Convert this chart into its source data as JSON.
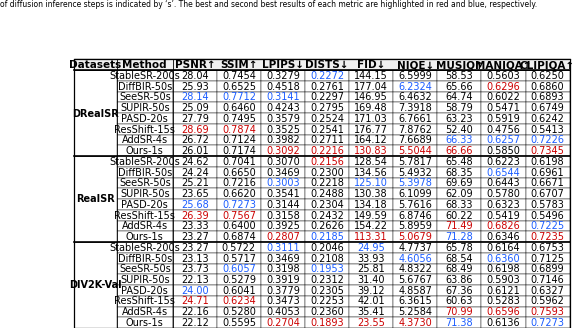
{
  "title_text": "of diffusion inference steps is indicated by ‘s’. The best and second best results of each metric are highlighted in red and blue, respectively.",
  "headers": [
    "Datasets",
    "Method",
    "PSNR↑",
    "SSIM↑",
    "LPIPS↓",
    "DISTS↓",
    "FID↓",
    "NIQE↓",
    "MUSIQ↑",
    "MANIQA↑",
    "CLIPIQA↑"
  ],
  "sections": [
    {
      "dataset": "DRealSR",
      "rows": [
        [
          "StableSR-200s",
          "28.04",
          "0.7454",
          "0.3279",
          "0.2272",
          "144.15",
          "6.5999",
          "58.53",
          "0.5603",
          "0.6250"
        ],
        [
          "DiffBIR-50s",
          "25.93",
          "0.6525",
          "0.4518",
          "0.2761",
          "177.04",
          "6.2324",
          "65.66",
          "0.6296",
          "0.6860"
        ],
        [
          "SeeSR-50s",
          "28.14",
          "0.7712",
          "0.3141",
          "0.2297",
          "146.95",
          "6.4632",
          "64.74",
          "0.6022",
          "0.6893"
        ],
        [
          "SUPIR-50s",
          "25.09",
          "0.6460",
          "0.4243",
          "0.2795",
          "169.48",
          "7.3918",
          "58.79",
          "0.5471",
          "0.6749"
        ],
        [
          "PASD-20s",
          "27.79",
          "0.7495",
          "0.3579",
          "0.2524",
          "171.03",
          "6.7661",
          "63.23",
          "0.5919",
          "0.6242"
        ],
        [
          "ResShift-15s",
          "28.69",
          "0.7874",
          "0.3525",
          "0.2541",
          "176.77",
          "7.8762",
          "52.40",
          "0.4756",
          "0.5413"
        ],
        [
          "AddSR-4s",
          "26.72",
          "0.7124",
          "0.3982",
          "0.2711",
          "164.12",
          "7.6689",
          "66.33",
          "0.6257",
          "0.7226"
        ],
        [
          "Ours-1s",
          "26.01",
          "0.7174",
          "0.3092",
          "0.2216",
          "130.83",
          "5.5044",
          "66.66",
          "0.5850",
          "0.7345"
        ]
      ],
      "colors": [
        [
          "black",
          "black",
          "black",
          "blue",
          "#1a6aff",
          "black",
          "black",
          "black",
          "black"
        ],
        [
          "black",
          "black",
          "black",
          "black",
          "black",
          "blue",
          "black",
          "red",
          "black"
        ],
        [
          "blue",
          "blue",
          "blue",
          "black",
          "black",
          "black",
          "black",
          "black",
          "black"
        ],
        [
          "black",
          "black",
          "black",
          "black",
          "black",
          "black",
          "black",
          "black",
          "black"
        ],
        [
          "black",
          "black",
          "black",
          "black",
          "black",
          "black",
          "black",
          "black",
          "black"
        ],
        [
          "red",
          "red",
          "black",
          "black",
          "black",
          "black",
          "black",
          "black",
          "black"
        ],
        [
          "black",
          "black",
          "black",
          "black",
          "black",
          "black",
          "blue",
          "blue",
          "blue"
        ],
        [
          "black",
          "black",
          "red",
          "red",
          "red",
          "red",
          "red",
          "black",
          "red"
        ]
      ]
    },
    {
      "dataset": "RealSR",
      "rows": [
        [
          "StableSR-200s",
          "24.62",
          "0.7041",
          "0.3070",
          "0.2156",
          "128.54",
          "5.7817",
          "65.48",
          "0.6223",
          "0.6198"
        ],
        [
          "DiffBIR-50s",
          "24.24",
          "0.6650",
          "0.3469",
          "0.2300",
          "134.56",
          "5.4932",
          "68.35",
          "0.6544",
          "0.6961"
        ],
        [
          "SeeSR-50s",
          "25.21",
          "0.7216",
          "0.3003",
          "0.2218",
          "125.10",
          "5.3978",
          "69.69",
          "0.6443",
          "0.6671"
        ],
        [
          "SUPIR-50s",
          "23.65",
          "0.6620",
          "0.3541",
          "0.2488",
          "130.38",
          "6.1099",
          "62.09",
          "0.5780",
          "0.6707"
        ],
        [
          "PASD-20s",
          "25.68",
          "0.7273",
          "0.3144",
          "0.2304",
          "134.18",
          "5.7616",
          "68.33",
          "0.6323",
          "0.5783"
        ],
        [
          "ResShift-15s",
          "26.39",
          "0.7567",
          "0.3158",
          "0.2432",
          "149.59",
          "6.8746",
          "60.22",
          "0.5419",
          "0.5496"
        ],
        [
          "AddSR-4s",
          "23.33",
          "0.6400",
          "0.3925",
          "0.2626",
          "154.22",
          "5.8959",
          "71.49",
          "0.6826",
          "0.7225"
        ],
        [
          "Ours-1s",
          "23.27",
          "0.6874",
          "0.2807",
          "0.2185",
          "113.31",
          "5.0679",
          "71.28",
          "0.6346",
          "0.7235"
        ]
      ],
      "colors": [
        [
          "black",
          "black",
          "black",
          "red",
          "black",
          "black",
          "black",
          "black",
          "black"
        ],
        [
          "black",
          "black",
          "black",
          "black",
          "black",
          "black",
          "black",
          "blue",
          "black"
        ],
        [
          "black",
          "black",
          "blue",
          "black",
          "blue",
          "blue",
          "black",
          "black",
          "black"
        ],
        [
          "black",
          "black",
          "black",
          "black",
          "black",
          "black",
          "black",
          "black",
          "black"
        ],
        [
          "blue",
          "blue",
          "black",
          "black",
          "black",
          "black",
          "black",
          "black",
          "black"
        ],
        [
          "red",
          "red",
          "black",
          "black",
          "black",
          "black",
          "black",
          "black",
          "black"
        ],
        [
          "black",
          "black",
          "black",
          "black",
          "black",
          "black",
          "red",
          "red",
          "blue"
        ],
        [
          "black",
          "black",
          "red",
          "blue",
          "red",
          "red",
          "blue",
          "black",
          "red"
        ]
      ]
    },
    {
      "dataset": "DIV2K-Val",
      "rows": [
        [
          "StableSR-200s",
          "23.27",
          "0.5722",
          "0.3111",
          "0.2046",
          "24.95",
          "4.7737",
          "65.78",
          "0.6164",
          "0.6753"
        ],
        [
          "DiffBIR-50s",
          "23.13",
          "0.5717",
          "0.3469",
          "0.2108",
          "33.93",
          "4.6056",
          "68.54",
          "0.6360",
          "0.7125"
        ],
        [
          "SeeSR-50s",
          "23.73",
          "0.6057",
          "0.3198",
          "0.1953",
          "25.81",
          "4.8322",
          "68.49",
          "0.6198",
          "0.6899"
        ],
        [
          "SUPIR-50s",
          "22.13",
          "0.5279",
          "0.3919",
          "0.2312",
          "31.40",
          "5.6767",
          "63.86",
          "0.5903",
          "0.7146"
        ],
        [
          "PASD-20s",
          "24.00",
          "0.6041",
          "0.3779",
          "0.2305",
          "39.12",
          "4.8587",
          "67.36",
          "0.6121",
          "0.6327"
        ],
        [
          "ResShift-15s",
          "24.71",
          "0.6234",
          "0.3473",
          "0.2253",
          "42.01",
          "6.3615",
          "60.63",
          "0.5283",
          "0.5962"
        ],
        [
          "AddSR-4s",
          "22.16",
          "0.5280",
          "0.4053",
          "0.2360",
          "35.41",
          "5.2584",
          "70.99",
          "0.6596",
          "0.7593"
        ],
        [
          "Ours-1s",
          "22.12",
          "0.5595",
          "0.2704",
          "0.1893",
          "23.55",
          "4.3730",
          "71.38",
          "0.6136",
          "0.7273"
        ]
      ],
      "colors": [
        [
          "black",
          "black",
          "blue",
          "black",
          "blue",
          "black",
          "black",
          "black",
          "black"
        ],
        [
          "black",
          "black",
          "black",
          "black",
          "black",
          "blue",
          "black",
          "blue",
          "black"
        ],
        [
          "black",
          "blue",
          "black",
          "blue",
          "black",
          "black",
          "black",
          "black",
          "black"
        ],
        [
          "black",
          "black",
          "black",
          "black",
          "black",
          "black",
          "black",
          "black",
          "black"
        ],
        [
          "blue",
          "black",
          "black",
          "black",
          "black",
          "black",
          "black",
          "black",
          "black"
        ],
        [
          "red",
          "red",
          "black",
          "black",
          "black",
          "black",
          "black",
          "black",
          "black"
        ],
        [
          "black",
          "black",
          "black",
          "black",
          "black",
          "black",
          "red",
          "red",
          "red"
        ],
        [
          "black",
          "black",
          "red",
          "red",
          "red",
          "red",
          "blue",
          "black",
          "blue"
        ]
      ]
    }
  ],
  "font_size": 7.0,
  "header_font_size": 7.5,
  "title_font_size": 5.5,
  "blue": "#1a5cff",
  "red": "#cc0000"
}
